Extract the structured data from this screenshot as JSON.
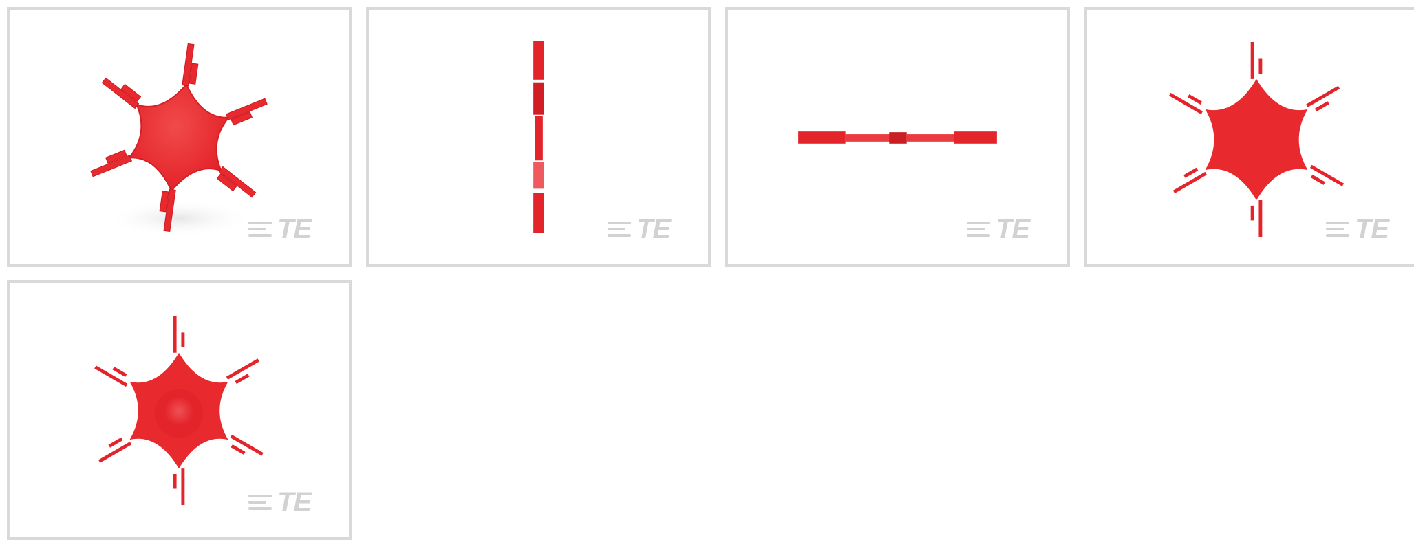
{
  "gallery": {
    "watermark_text": "TE",
    "accent_color": "#e8292e",
    "border_color": "#d9d9d9",
    "views": [
      {
        "view": "isometric"
      },
      {
        "view": "side"
      },
      {
        "view": "top"
      },
      {
        "view": "front"
      },
      {
        "view": "back"
      }
    ]
  }
}
